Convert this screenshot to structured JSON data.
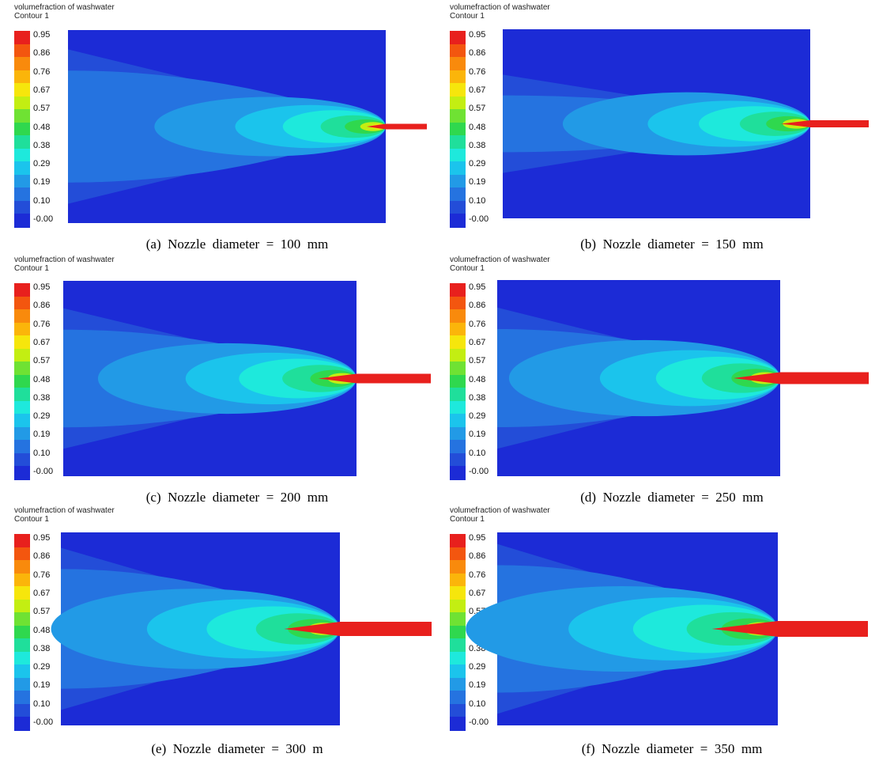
{
  "legend": {
    "variable": "volumefraction of washwater",
    "contour": "Contour 1",
    "ticks": [
      "0.95",
      "0.86",
      "0.76",
      "0.67",
      "0.57",
      "0.48",
      "0.38",
      "0.29",
      "0.19",
      "0.10",
      "-0.00"
    ],
    "colors": [
      "#e8201d",
      "#f3560f",
      "#f98a0c",
      "#fbb50a",
      "#f6e60c",
      "#c3ee12",
      "#6fe233",
      "#2fd84e",
      "#1fdf9b",
      "#1ee9dc",
      "#1bc4ec",
      "#229ae6",
      "#2573e0",
      "#234dd8",
      "#1c2bd6"
    ]
  },
  "panels": [
    {
      "id": "a",
      "caption": "(a)  Nozzle  diameter  =  100  mm",
      "nozzle_diameter_mm": 100
    },
    {
      "id": "b",
      "caption": "(b)  Nozzle  diameter  =  150  mm",
      "nozzle_diameter_mm": 150
    },
    {
      "id": "c",
      "caption": "(c)  Nozzle  diameter  =  200  mm",
      "nozzle_diameter_mm": 200
    },
    {
      "id": "d",
      "caption": "(d)  Nozzle  diameter  =  250  mm",
      "nozzle_diameter_mm": 250
    },
    {
      "id": "e",
      "caption": "(e)  Nozzle  diameter  =  300  m",
      "nozzle_diameter_mm": 300
    },
    {
      "id": "f",
      "caption": "(f)  Nozzle  diameter  =  350  mm",
      "nozzle_diameter_mm": 350
    }
  ]
}
